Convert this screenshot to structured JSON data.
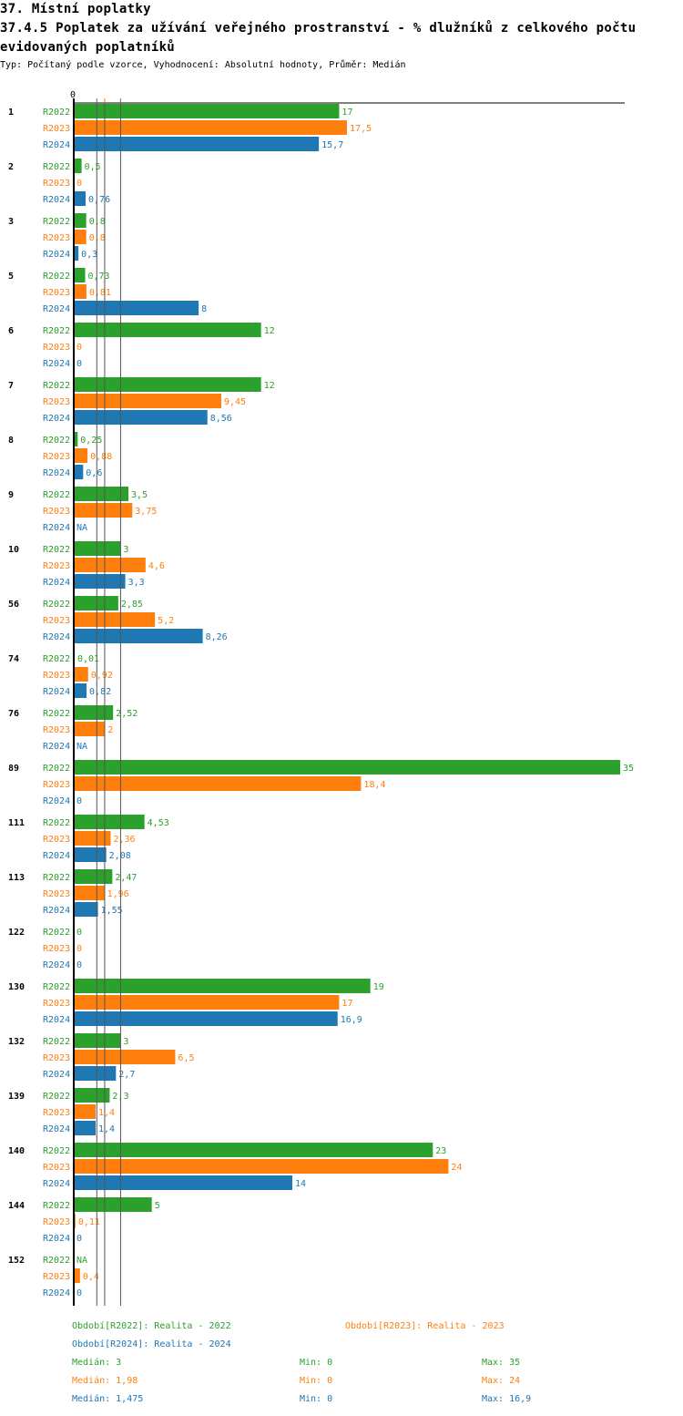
{
  "header": {
    "title": "37. Místní poplatky",
    "subtitle": "37.4.5 Poplatek za užívání veřejného prostranství - % dlužníků z celkového počtu evidovaných poplatníků",
    "info": "Typ: Počítaný podle vzorce, Vyhodnocení: Absolutní hodnoty, Průměr: Medián"
  },
  "chart_data": {
    "type": "bar",
    "orientation": "horizontal",
    "title": "37.4.5 Poplatek za užívání veřejného prostranství - % dlužníků z celkového počtu evidovaných poplatníků",
    "axis_zero_label": "0",
    "xlim": [
      0,
      35
    ],
    "categories": [
      "1",
      "2",
      "3",
      "5",
      "6",
      "7",
      "8",
      "9",
      "10",
      "56",
      "74",
      "76",
      "89",
      "111",
      "113",
      "122",
      "130",
      "132",
      "139",
      "140",
      "144",
      "152"
    ],
    "series": [
      {
        "name": "R2022",
        "color": "#2ca02c",
        "values": [
          17,
          0.5,
          0.8,
          0.73,
          12,
          12,
          0.25,
          3.5,
          3,
          2.85,
          0.01,
          2.52,
          35,
          4.53,
          2.47,
          0,
          19,
          3,
          2.3,
          23,
          5,
          null
        ],
        "labels": [
          "17",
          "0,5",
          "0,8",
          "0,73",
          "12",
          "12",
          "0,25",
          "3,5",
          "3",
          "2,85",
          "0,01",
          "2,52",
          "35",
          "4,53",
          "2,47",
          "0",
          "19",
          "3",
          "2,3",
          "23",
          "5",
          "NA"
        ]
      },
      {
        "name": "R2023",
        "color": "#ff7f0e",
        "values": [
          17.5,
          0,
          0.8,
          0.81,
          0,
          9.45,
          0.88,
          3.75,
          4.6,
          5.2,
          0.92,
          2,
          18.4,
          2.36,
          1.96,
          0,
          17,
          6.5,
          1.4,
          24,
          0.11,
          0.4
        ],
        "labels": [
          "17,5",
          "0",
          "0,8",
          "0,81",
          "0",
          "9,45",
          "0,88",
          "3,75",
          "4,6",
          "5,2",
          "0,92",
          "2",
          "18,4",
          "2,36",
          "1,96",
          "0",
          "17",
          "6,5",
          "1,4",
          "24",
          "0,11",
          "0,4"
        ]
      },
      {
        "name": "R2024",
        "color": "#1f77b4",
        "values": [
          15.7,
          0.76,
          0.3,
          8,
          0,
          8.56,
          0.6,
          null,
          3.3,
          8.26,
          0.82,
          null,
          0,
          2.08,
          1.55,
          0,
          16.9,
          2.7,
          1.4,
          14,
          0,
          0
        ],
        "labels": [
          "15,7",
          "0,76",
          "0,3",
          "8",
          "0",
          "8,56",
          "0,6",
          "NA",
          "3,3",
          "8,26",
          "0,82",
          "NA",
          "0",
          "2,08",
          "1,55",
          "0",
          "16,9",
          "2,7",
          "1,4",
          "14",
          "0",
          "0"
        ]
      }
    ],
    "medians": [
      3,
      1.98,
      1.475
    ]
  },
  "legend": {
    "periods": [
      "Období[R2022]: Realita - 2022",
      "Období[R2023]: Realita - 2023",
      "Období[R2024]: Realita - 2024"
    ],
    "stats": [
      [
        "Medián: 3",
        "Min: 0",
        "Max: 35"
      ],
      [
        "Medián: 1,98",
        "Min: 0",
        "Max: 24"
      ],
      [
        "Medián: 1,475",
        "Min: 0",
        "Max: 16,9"
      ]
    ]
  }
}
